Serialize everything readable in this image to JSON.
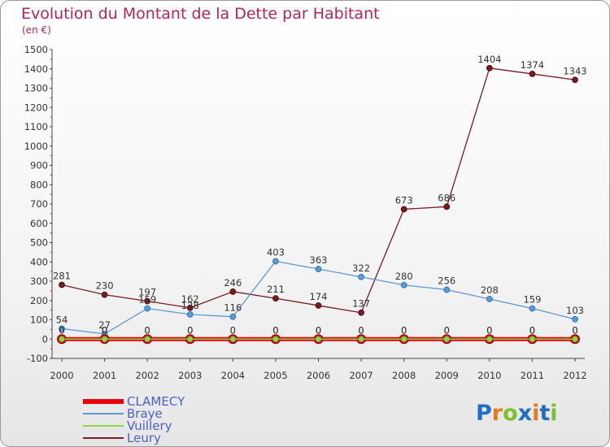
{
  "chart_data": {
    "type": "line",
    "title": "Evolution du Montant de la Dette par Habitant",
    "subtitle": "(en €)",
    "x": [
      "2000",
      "2001",
      "2002",
      "2003",
      "2004",
      "2005",
      "2006",
      "2007",
      "2008",
      "2009",
      "2010",
      "2011",
      "2012"
    ],
    "ylim": [
      -100,
      1500
    ],
    "yticks": [
      -100,
      0,
      100,
      200,
      300,
      400,
      500,
      600,
      700,
      800,
      900,
      1000,
      1100,
      1200,
      1300,
      1400,
      1500
    ],
    "grid": false,
    "legend_position": "bottom-left",
    "series": [
      {
        "name": "CLAMECY",
        "color": "#e8000b",
        "values": [
          0,
          0,
          0,
          0,
          0,
          0,
          0,
          0,
          0,
          0,
          0,
          0,
          0
        ],
        "labels": [
          "0",
          "0",
          "0",
          "0",
          "0",
          "0",
          "0",
          "0",
          "0",
          "0",
          "0",
          "0",
          "0"
        ]
      },
      {
        "name": "Braye",
        "color": "#5b9bd5",
        "values": [
          54,
          27,
          159,
          128,
          116,
          403,
          363,
          322,
          280,
          256,
          208,
          159,
          103
        ],
        "labels": [
          "54",
          "27",
          "159",
          "128",
          "116",
          "403",
          "363",
          "322",
          "280",
          "256",
          "208",
          "159",
          "103"
        ]
      },
      {
        "name": "Vuillery",
        "color": "#8ed44a",
        "values": [
          0,
          0,
          0,
          0,
          0,
          0,
          0,
          0,
          0,
          0,
          0,
          0,
          0
        ],
        "labels": [
          "0",
          "0",
          "0",
          "0",
          "0",
          "0",
          "0",
          "0",
          "0",
          "0",
          "0",
          "0",
          "0"
        ]
      },
      {
        "name": "Leury",
        "color": "#7a1a22",
        "values": [
          281,
          230,
          197,
          162,
          246,
          211,
          174,
          137,
          673,
          686,
          1404,
          1374,
          1343
        ],
        "labels": [
          "281",
          "230",
          "197",
          "162",
          "246",
          "211",
          "174",
          "137",
          "673",
          "686",
          "1404",
          "1374",
          "1343"
        ]
      }
    ]
  },
  "logo": {
    "text": "Proxiti",
    "letters": [
      "P",
      "r",
      "o",
      "x",
      "i",
      "t",
      "i"
    ],
    "colors": [
      "#1f6fc9",
      "#e87b1c",
      "#7dbf2c",
      "#1f6fc9",
      "#e87b1c",
      "#1f6fc9",
      "#7dbf2c"
    ]
  }
}
